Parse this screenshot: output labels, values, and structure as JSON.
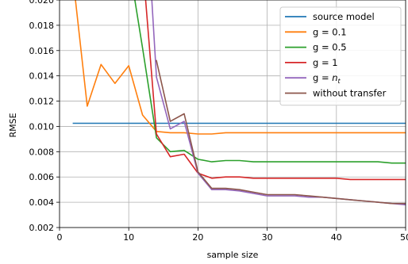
{
  "chart_data": {
    "type": "line",
    "xlabel": "sample size",
    "ylabel": "RMSE",
    "xlim": [
      0,
      50
    ],
    "ylim": [
      0.002,
      0.02
    ],
    "xticks": [
      0,
      10,
      20,
      30,
      40,
      50
    ],
    "yticks": [
      0.002,
      0.004,
      0.006,
      0.008,
      0.01,
      0.012,
      0.014,
      0.016,
      0.018,
      0.02
    ],
    "xtick_labels": [
      "0",
      "10",
      "20",
      "30",
      "40",
      "50"
    ],
    "ytick_labels": [
      "0.002",
      "0.004",
      "0.006",
      "0.008",
      "0.010",
      "0.012",
      "0.014",
      "0.016",
      "0.018",
      "0.020"
    ],
    "grid": true,
    "legend_position": "top-right",
    "series": [
      {
        "name": "source model",
        "color": "#1f77b4",
        "x": [
          2,
          50
        ],
        "y": [
          0.01025,
          0.01025
        ]
      },
      {
        "name": "g = 0.1",
        "color": "#ff7f0e",
        "x": [
          2,
          4,
          6,
          8,
          10,
          12,
          14,
          16,
          18,
          20,
          22,
          24,
          26,
          28,
          30,
          32,
          34,
          36,
          38,
          40,
          42,
          44,
          46,
          48,
          50
        ],
        "y": [
          0.0215,
          0.0116,
          0.0149,
          0.0134,
          0.0148,
          0.0109,
          0.0096,
          0.0095,
          0.0095,
          0.0094,
          0.0094,
          0.0095,
          0.0095,
          0.0095,
          0.0095,
          0.0095,
          0.0095,
          0.0095,
          0.0095,
          0.0095,
          0.0095,
          0.0095,
          0.0095,
          0.0095,
          0.0095
        ]
      },
      {
        "name": "g = 0.5",
        "color": "#2ca02c",
        "x": [
          10,
          12,
          14,
          16,
          18,
          20,
          22,
          24,
          26,
          28,
          30,
          32,
          34,
          36,
          38,
          40,
          42,
          44,
          46,
          48,
          50
        ],
        "y": [
          0.023,
          0.0162,
          0.0091,
          0.008,
          0.0081,
          0.0074,
          0.0072,
          0.0073,
          0.0073,
          0.0072,
          0.0072,
          0.0072,
          0.0072,
          0.0072,
          0.0072,
          0.0072,
          0.0072,
          0.0072,
          0.0072,
          0.0071,
          0.0071
        ]
      },
      {
        "name": "g = 1",
        "color": "#d62728",
        "x": [
          12,
          14,
          16,
          18,
          20,
          22,
          24,
          26,
          28,
          30,
          32,
          34,
          36,
          38,
          40,
          42,
          44,
          46,
          48,
          50
        ],
        "y": [
          0.023,
          0.0094,
          0.0076,
          0.0078,
          0.0063,
          0.0059,
          0.006,
          0.006,
          0.0059,
          0.0059,
          0.0059,
          0.0059,
          0.0059,
          0.0059,
          0.0059,
          0.0058,
          0.0058,
          0.0058,
          0.0058,
          0.0058
        ]
      },
      {
        "name": "g = n_t",
        "color": "#9467bd",
        "x": [
          13,
          14,
          16,
          18,
          20,
          22,
          24,
          26,
          28,
          30,
          32,
          34,
          36,
          38,
          40,
          42,
          44,
          46,
          48,
          50
        ],
        "y": [
          0.023,
          0.0139,
          0.0098,
          0.0104,
          0.0063,
          0.005,
          0.005,
          0.0049,
          0.0047,
          0.0045,
          0.0045,
          0.0045,
          0.0044,
          0.0044,
          0.0043,
          0.0042,
          0.0041,
          0.004,
          0.0039,
          0.0038
        ]
      },
      {
        "name": "without transfer",
        "color": "#8c564b",
        "x": [
          14,
          16,
          18,
          20,
          22,
          24,
          26,
          28,
          30,
          32,
          34,
          36,
          38,
          40,
          42,
          44,
          46,
          48,
          50
        ],
        "y": [
          0.0152,
          0.0104,
          0.011,
          0.0064,
          0.0051,
          0.0051,
          0.005,
          0.0048,
          0.0046,
          0.0046,
          0.0046,
          0.0045,
          0.0044,
          0.0043,
          0.0042,
          0.0041,
          0.004,
          0.0039,
          0.0039
        ]
      }
    ]
  }
}
